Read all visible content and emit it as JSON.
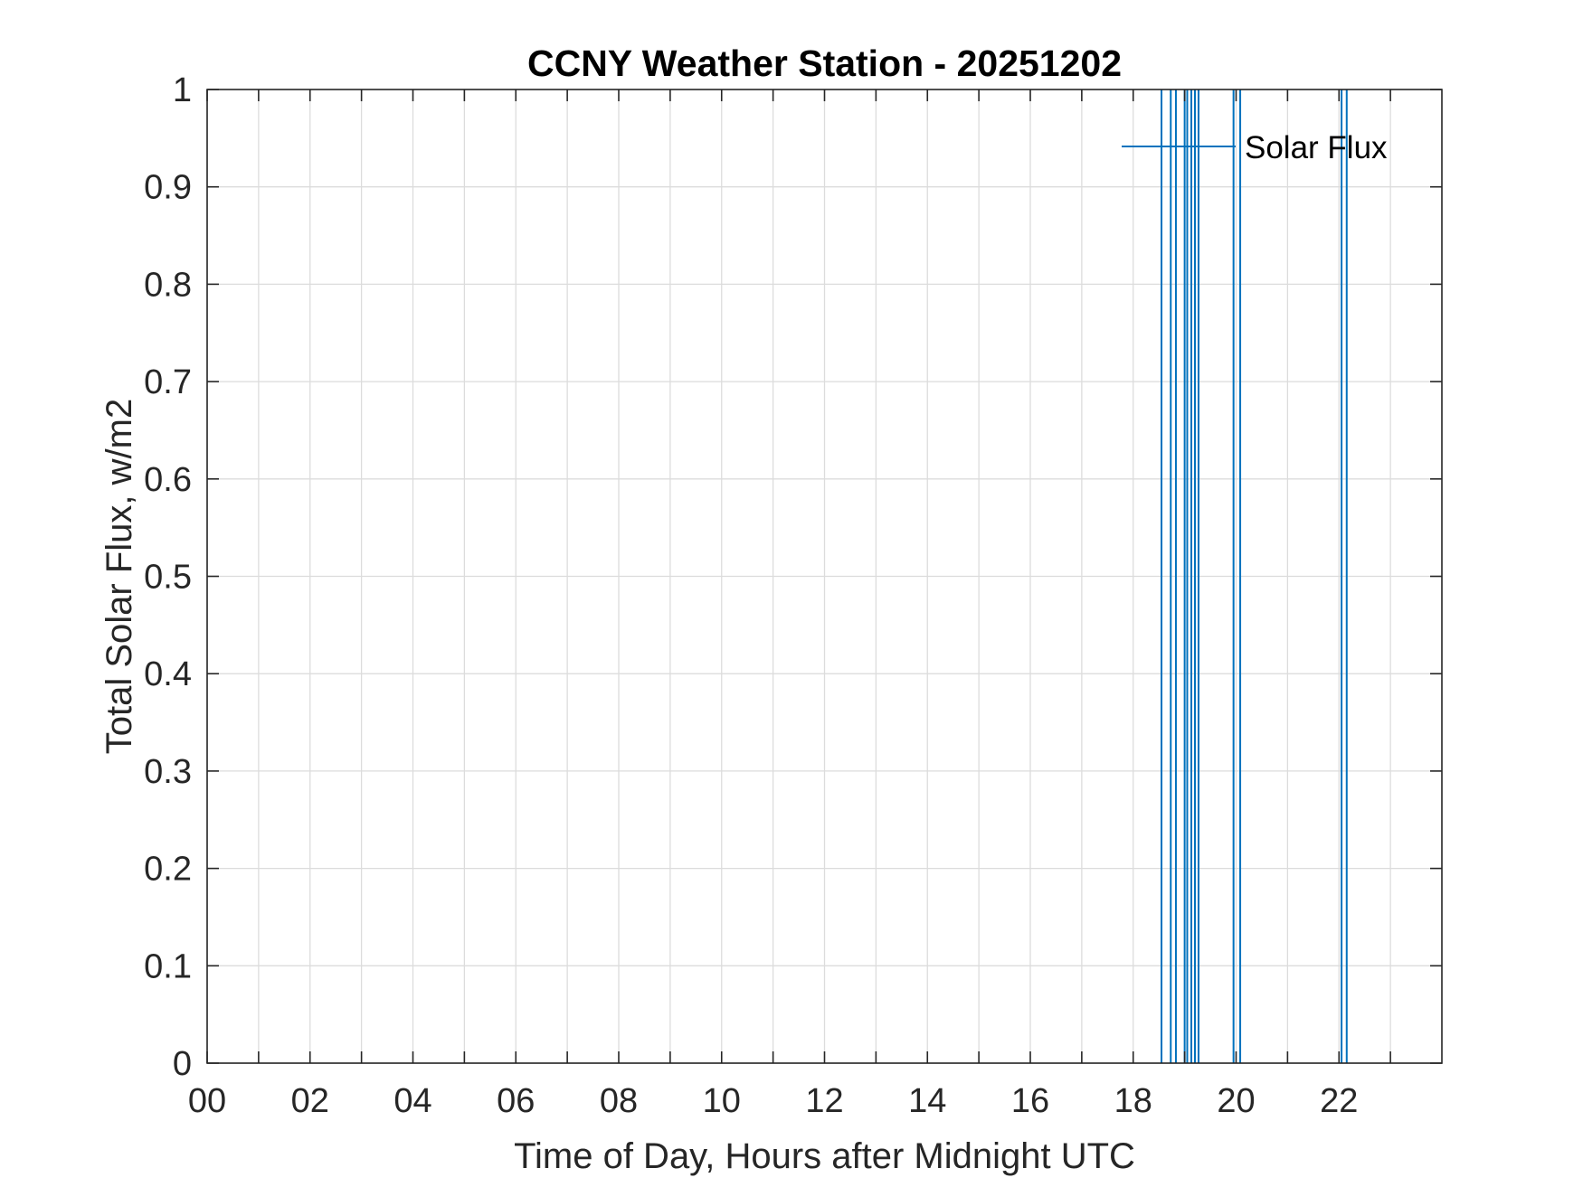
{
  "chart_data": {
    "type": "line",
    "title": "CCNY Weather Station - 20251202",
    "xlabel": "Time of Day, Hours after Midnight UTC",
    "ylabel": "Total Solar Flux, w/m2",
    "xlim": [
      0,
      24
    ],
    "ylim": [
      0,
      1
    ],
    "x_ticks": [
      0,
      2,
      4,
      6,
      8,
      10,
      12,
      14,
      16,
      18,
      20,
      22
    ],
    "x_tick_labels": [
      "00",
      "02",
      "04",
      "06",
      "08",
      "10",
      "12",
      "14",
      "16",
      "18",
      "20",
      "22"
    ],
    "x_minor_ticks": [
      1,
      3,
      5,
      7,
      9,
      11,
      13,
      15,
      17,
      19,
      21,
      23
    ],
    "y_ticks": [
      0,
      0.1,
      0.2,
      0.3,
      0.4,
      0.5,
      0.6,
      0.7,
      0.8,
      0.9,
      1
    ],
    "y_tick_labels": [
      "0",
      "0.1",
      "0.2",
      "0.3",
      "0.4",
      "0.5",
      "0.6",
      "0.7",
      "0.8",
      "0.9",
      "1"
    ],
    "grid": true,
    "legend_position": "top-right",
    "series": [
      {
        "name": "Solar Flux",
        "color": "#0072BD",
        "note_spikes_x": [
          18.55,
          18.73,
          18.83,
          19.0,
          19.05,
          19.13,
          19.2,
          19.27,
          19.95,
          20.08,
          22.05,
          22.15
        ]
      }
    ]
  }
}
